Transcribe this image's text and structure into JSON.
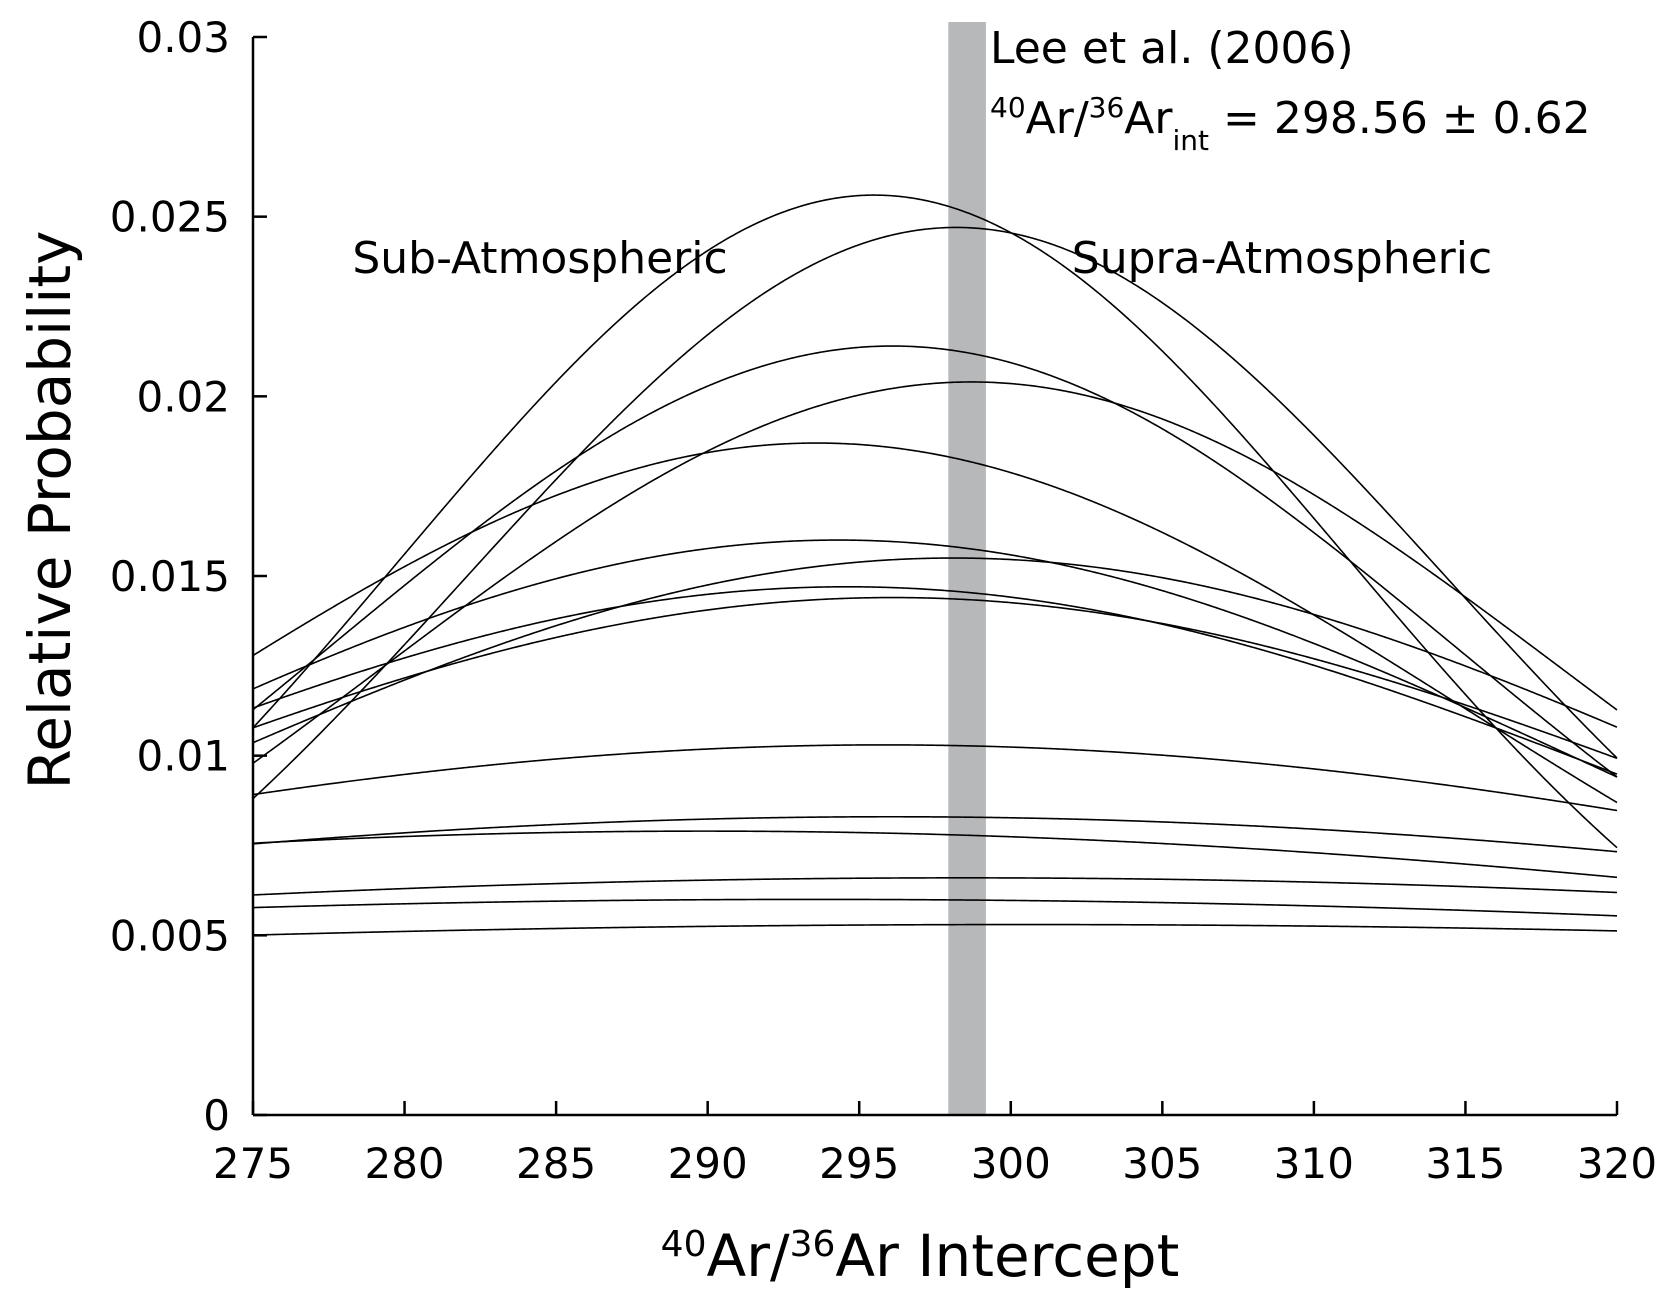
{
  "chart_data": {
    "type": "line",
    "xlabel": {
      "sup1": "40",
      "mid": "Ar/",
      "sup2": "36",
      "end": "Ar Intercept"
    },
    "ylabel": "Relative Probability",
    "xlim": [
      275,
      320
    ],
    "ylim": [
      0,
      0.03
    ],
    "x_ticks": [
      "275",
      "280",
      "285",
      "290",
      "295",
      "300",
      "305",
      "310",
      "315",
      "320"
    ],
    "y_ticks": [
      "0",
      "0.005",
      "0.01",
      "0.015",
      "0.02",
      "0.025",
      "0.03"
    ],
    "grid": false,
    "band": {
      "x_from": 297.94,
      "x_to": 299.18,
      "color": "#b7b8ba"
    },
    "annotations": {
      "reference": "Lee et al. (2006)",
      "equation": {
        "sup1": "40",
        "mid": "Ar/",
        "sup2": "36",
        "base": "Ar",
        "sub": "int",
        "rest": " = 298.56 ± 0.62"
      },
      "left_region": "Sub-Atmospheric",
      "right_region": "Supra-Atmospheric"
    },
    "series_kind": "gaussian",
    "series": [
      {
        "mean": 289.9,
        "peak": 0.0079
      },
      {
        "mean": 293.5,
        "peak": 0.006
      },
      {
        "mean": 293.6,
        "peak": 0.0187
      },
      {
        "mean": 294.3,
        "peak": 0.016
      },
      {
        "mean": 294.6,
        "peak": 0.0147
      },
      {
        "mean": 295.5,
        "peak": 0.0256
      },
      {
        "mean": 295.8,
        "peak": 0.0103
      },
      {
        "mean": 296.0,
        "peak": 0.0083
      },
      {
        "mean": 296.1,
        "peak": 0.0214
      },
      {
        "mean": 296.1,
        "peak": 0.0144
      },
      {
        "mean": 298.1,
        "peak": 0.0155
      },
      {
        "mean": 298.2,
        "peak": 0.0247
      },
      {
        "mean": 298.4,
        "peak": 0.0066
      },
      {
        "mean": 298.7,
        "peak": 0.0204
      },
      {
        "mean": 300.4,
        "peak": 0.0053
      }
    ],
    "curve_color": "#000000"
  }
}
